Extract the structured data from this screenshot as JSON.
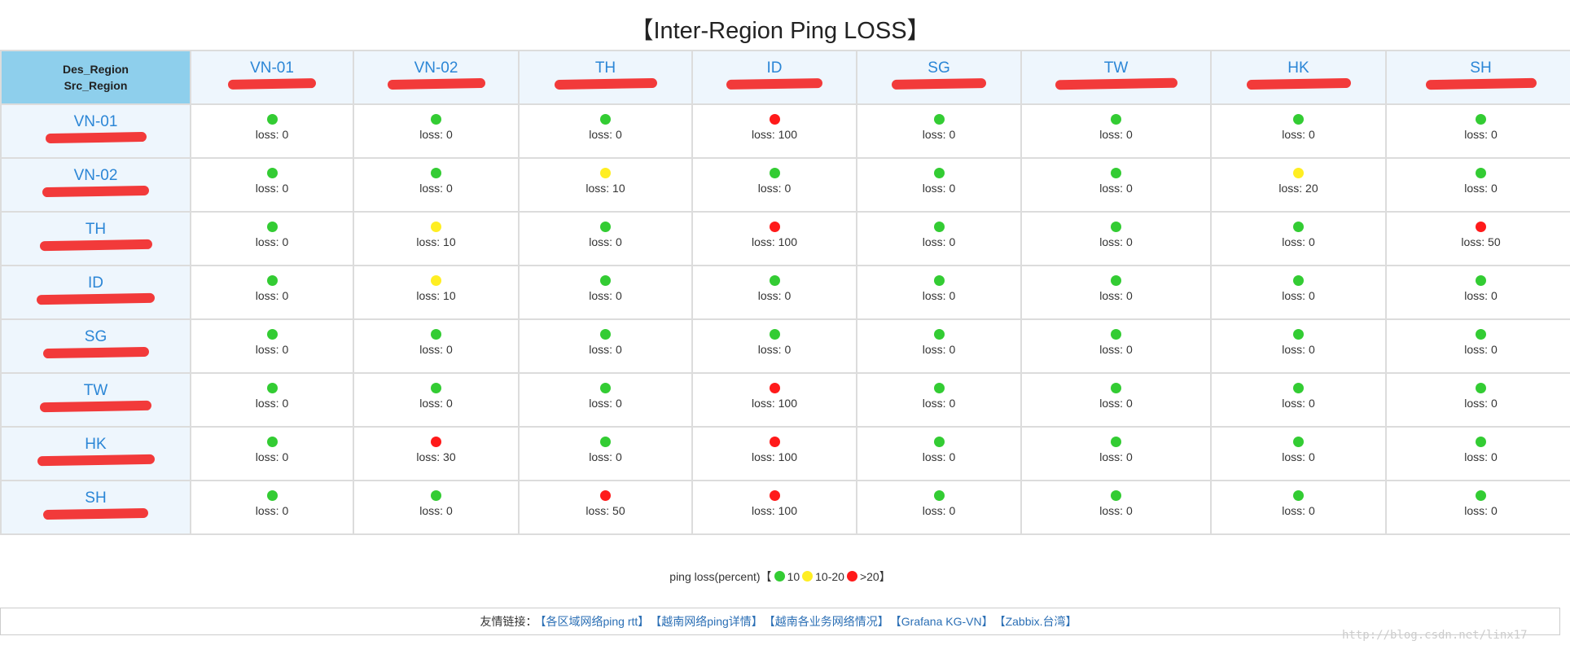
{
  "title": "【Inter-Region Ping LOSS】",
  "corner": {
    "des": "Des_Region",
    "src": "Src_Region"
  },
  "columns": [
    "VN-01",
    "VN-02",
    "TH",
    "ID",
    "SG",
    "TW",
    "HK",
    "SH"
  ],
  "rows": [
    {
      "name": "VN-01",
      "cells": [
        {
          "color": "#33cc33",
          "text": "loss: 0"
        },
        {
          "color": "#33cc33",
          "text": "loss: 0"
        },
        {
          "color": "#33cc33",
          "text": "loss: 0"
        },
        {
          "color": "#ff1a1a",
          "text": "loss: 100"
        },
        {
          "color": "#33cc33",
          "text": "loss: 0"
        },
        {
          "color": "#33cc33",
          "text": "loss: 0"
        },
        {
          "color": "#33cc33",
          "text": "loss: 0"
        },
        {
          "color": "#33cc33",
          "text": "loss: 0"
        }
      ]
    },
    {
      "name": "VN-02",
      "cells": [
        {
          "color": "#33cc33",
          "text": "loss: 0"
        },
        {
          "color": "#33cc33",
          "text": "loss: 0"
        },
        {
          "color": "#ffee22",
          "text": "loss: 10"
        },
        {
          "color": "#33cc33",
          "text": "loss: 0"
        },
        {
          "color": "#33cc33",
          "text": "loss: 0"
        },
        {
          "color": "#33cc33",
          "text": "loss: 0"
        },
        {
          "color": "#ffee22",
          "text": "loss: 20"
        },
        {
          "color": "#33cc33",
          "text": "loss: 0"
        }
      ]
    },
    {
      "name": "TH",
      "cells": [
        {
          "color": "#33cc33",
          "text": "loss: 0"
        },
        {
          "color": "#ffee22",
          "text": "loss: 10"
        },
        {
          "color": "#33cc33",
          "text": "loss: 0"
        },
        {
          "color": "#ff1a1a",
          "text": "loss: 100"
        },
        {
          "color": "#33cc33",
          "text": "loss: 0"
        },
        {
          "color": "#33cc33",
          "text": "loss: 0"
        },
        {
          "color": "#33cc33",
          "text": "loss: 0"
        },
        {
          "color": "#ff1a1a",
          "text": "loss: 50"
        }
      ]
    },
    {
      "name": "ID",
      "cells": [
        {
          "color": "#33cc33",
          "text": "loss: 0"
        },
        {
          "color": "#ffee22",
          "text": "loss: 10"
        },
        {
          "color": "#33cc33",
          "text": "loss: 0"
        },
        {
          "color": "#33cc33",
          "text": "loss: 0"
        },
        {
          "color": "#33cc33",
          "text": "loss: 0"
        },
        {
          "color": "#33cc33",
          "text": "loss: 0"
        },
        {
          "color": "#33cc33",
          "text": "loss: 0"
        },
        {
          "color": "#33cc33",
          "text": "loss: 0"
        }
      ]
    },
    {
      "name": "SG",
      "cells": [
        {
          "color": "#33cc33",
          "text": "loss: 0"
        },
        {
          "color": "#33cc33",
          "text": "loss: 0"
        },
        {
          "color": "#33cc33",
          "text": "loss: 0"
        },
        {
          "color": "#33cc33",
          "text": "loss: 0"
        },
        {
          "color": "#33cc33",
          "text": "loss: 0"
        },
        {
          "color": "#33cc33",
          "text": "loss: 0"
        },
        {
          "color": "#33cc33",
          "text": "loss: 0"
        },
        {
          "color": "#33cc33",
          "text": "loss: 0"
        }
      ]
    },
    {
      "name": "TW",
      "cells": [
        {
          "color": "#33cc33",
          "text": "loss: 0"
        },
        {
          "color": "#33cc33",
          "text": "loss: 0"
        },
        {
          "color": "#33cc33",
          "text": "loss: 0"
        },
        {
          "color": "#ff1a1a",
          "text": "loss: 100"
        },
        {
          "color": "#33cc33",
          "text": "loss: 0"
        },
        {
          "color": "#33cc33",
          "text": "loss: 0"
        },
        {
          "color": "#33cc33",
          "text": "loss: 0"
        },
        {
          "color": "#33cc33",
          "text": "loss: 0"
        }
      ]
    },
    {
      "name": "HK",
      "cells": [
        {
          "color": "#33cc33",
          "text": "loss: 0"
        },
        {
          "color": "#ff1a1a",
          "text": "loss: 30"
        },
        {
          "color": "#33cc33",
          "text": "loss: 0"
        },
        {
          "color": "#ff1a1a",
          "text": "loss: 100"
        },
        {
          "color": "#33cc33",
          "text": "loss: 0"
        },
        {
          "color": "#33cc33",
          "text": "loss: 0"
        },
        {
          "color": "#33cc33",
          "text": "loss: 0"
        },
        {
          "color": "#33cc33",
          "text": "loss: 0"
        }
      ]
    },
    {
      "name": "SH",
      "cells": [
        {
          "color": "#33cc33",
          "text": "loss: 0"
        },
        {
          "color": "#33cc33",
          "text": "loss: 0"
        },
        {
          "color": "#ff1a1a",
          "text": "loss: 50"
        },
        {
          "color": "#ff1a1a",
          "text": "loss: 100"
        },
        {
          "color": "#33cc33",
          "text": "loss: 0"
        },
        {
          "color": "#33cc33",
          "text": "loss: 0"
        },
        {
          "color": "#33cc33",
          "text": "loss: 0"
        },
        {
          "color": "#33cc33",
          "text": "loss: 0"
        }
      ]
    }
  ],
  "legend": {
    "prefix": "ping loss(percent)【",
    "items": [
      {
        "color": "#33cc33",
        "label": "10"
      },
      {
        "color": "#ffee22",
        "label": "10-20"
      },
      {
        "color": "#ff1a1a",
        "label": ">20"
      }
    ],
    "suffix": "】"
  },
  "footer": {
    "label": "友情链接：",
    "links": [
      "【各区域网络ping rtt】",
      "【越南网络ping详情】",
      "【越南各业务网络情况】",
      "【Grafana KG-VN】",
      "【Zabbix.台湾】"
    ]
  },
  "watermark": "http://blog.csdn.net/linx17"
}
